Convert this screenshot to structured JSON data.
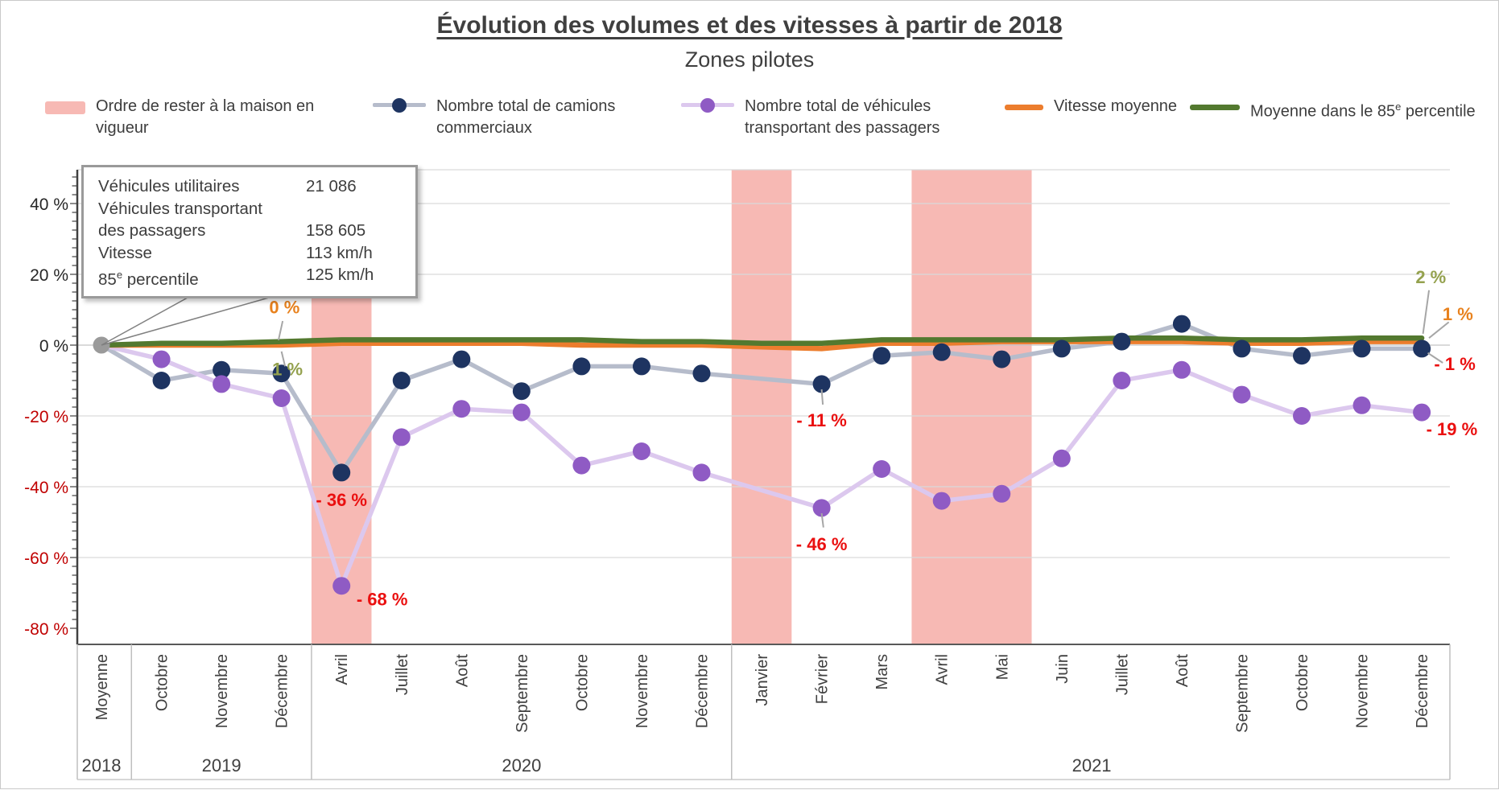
{
  "title": "Évolution des volumes et des vitesses à partir de 2018",
  "subtitle": "Zones pilotes",
  "legend": {
    "items": [
      {
        "line1": "Ordre de rester à la maison en",
        "line2": "vigueur"
      },
      {
        "line1": "Nombre total de camions",
        "line2": "commerciaux"
      },
      {
        "line1": "Nombre total de véhicules",
        "line2": "transportant des passagers"
      },
      {
        "line1": "Vitesse moyenne",
        "line2": ""
      },
      {
        "pre": "Moyenne dans le 85",
        "sup": "e",
        "post": " percentile"
      }
    ]
  },
  "tooltip": {
    "rows": [
      {
        "label": "Véhicules utilitaires",
        "value": "21 086"
      },
      {
        "label": "Véhicules transportant",
        "value": ""
      },
      {
        "label": "des passagers",
        "value": "158 605"
      },
      {
        "label": "Vitesse",
        "value": "113 km/h"
      }
    ],
    "row_85": {
      "pre": "85",
      "sup": "e",
      "post": " percentile",
      "value": "125 km/h"
    }
  },
  "colors": {
    "band": "#f7b9b4",
    "navy": "#1e3461",
    "navy_line": "#b6bccb",
    "purple": "#8f5bc4",
    "purple_line": "#dcc8ee",
    "orange": "#ec7d2d",
    "green": "#53792f",
    "red": "#ea1010",
    "olive": "#94a14e",
    "orange_label": "#e8821e",
    "grid": "#d9d9d9",
    "axis": "#404040",
    "neg_tick": "#c00000",
    "baseline": "#9a9a9a",
    "text": "#404040"
  },
  "chart_data": {
    "type": "line",
    "title": "Évolution des volumes et des vitesses à partir de 2018",
    "subtitle": "Zones pilotes",
    "xlabel": "",
    "ylabel": "",
    "ylim": [
      -80,
      50
    ],
    "yticks": [
      40,
      20,
      0,
      -20,
      -40,
      -60,
      -80
    ],
    "grid": true,
    "legend_position": "top",
    "categories": [
      "Moyenne",
      "Octobre",
      "Novembre",
      "Décembre",
      "Avril",
      "Juillet",
      "Août",
      "Septembre",
      "Octobre",
      "Novembre",
      "Décembre",
      "Janvier",
      "Février",
      "Mars",
      "Avril",
      "Mai",
      "Juin",
      "Juillet",
      "Août",
      "Septembre",
      "Octobre",
      "Novembre",
      "Décembre"
    ],
    "year_groups": [
      {
        "label": "2018",
        "start": 0,
        "end": 0
      },
      {
        "label": "2019",
        "start": 1,
        "end": 3
      },
      {
        "label": "2020",
        "start": 4,
        "end": 10
      },
      {
        "label": "2021",
        "start": 11,
        "end": 22
      }
    ],
    "stay_home_bands": [
      [
        4,
        4
      ],
      [
        11,
        11
      ],
      [
        14,
        15
      ]
    ],
    "series": [
      {
        "name": "Nombre total de camions commerciaux",
        "markers": true,
        "color_key": "navy",
        "line_key": "navy_line",
        "values": [
          0,
          -10,
          -7,
          -8,
          -36,
          -10,
          -4,
          -13,
          -6,
          -6,
          -8,
          null,
          -11,
          -3,
          -2,
          -4,
          -1,
          1,
          6,
          -1,
          -3,
          -1,
          -1
        ]
      },
      {
        "name": "Nombre total de véhicules transportant des passagers",
        "markers": true,
        "color_key": "purple",
        "line_key": "purple_line",
        "values": [
          0,
          -4,
          -11,
          -15,
          -68,
          -26,
          -18,
          -19,
          -34,
          -30,
          -36,
          null,
          -46,
          -35,
          -44,
          -42,
          -32,
          -10,
          -7,
          -14,
          -20,
          -17,
          -19
        ]
      },
      {
        "name": "Vitesse moyenne",
        "markers": false,
        "color_key": "orange",
        "values": [
          0,
          0,
          0,
          0,
          0.5,
          0.5,
          0.5,
          0.5,
          0,
          0,
          0,
          -0.5,
          -1,
          0.5,
          0.5,
          1,
          1,
          1,
          1,
          0.5,
          0.5,
          1,
          1
        ]
      },
      {
        "name": "Moyenne dans le 85e percentile",
        "markers": false,
        "color_key": "green",
        "values": [
          0,
          0.5,
          0.5,
          1,
          1.5,
          1.5,
          1.5,
          1.5,
          1.5,
          1,
          1,
          0.5,
          0.5,
          1.5,
          1.5,
          1.5,
          1.5,
          2,
          2,
          1.5,
          1.5,
          2,
          2
        ]
      }
    ],
    "annotations": [
      {
        "text": "0 %",
        "color_key": "orange_label",
        "xi": 3.05,
        "yv": 9,
        "anchor": "middle"
      },
      {
        "text": "1 %",
        "color_key": "olive",
        "xi": 3.1,
        "yv": -8.5,
        "anchor": "middle"
      },
      {
        "text": "- 36 %",
        "color_key": "red",
        "xi": 4.0,
        "yv": -45.5,
        "anchor": "middle"
      },
      {
        "text": "- 68 %",
        "color_key": "red",
        "xi": 4.25,
        "yv": -73.5,
        "anchor": "start"
      },
      {
        "text": "- 11 %",
        "color_key": "red",
        "xi": 12.0,
        "yv": -23,
        "anchor": "middle"
      },
      {
        "text": "- 46 %",
        "color_key": "red",
        "xi": 12.0,
        "yv": -58,
        "anchor": "middle"
      },
      {
        "text": "2 %",
        "color_key": "olive",
        "xi": 22.15,
        "yv": 17.5,
        "anchor": "middle"
      },
      {
        "text": "1 %",
        "color_key": "orange_label",
        "xi": 22.6,
        "yv": 7,
        "anchor": "middle"
      },
      {
        "text": "- 1 %",
        "color_key": "red",
        "xi": 22.55,
        "yv": -7,
        "anchor": "middle"
      },
      {
        "text": "- 19 %",
        "color_key": "red",
        "xi": 22.5,
        "yv": -25.5,
        "anchor": "middle"
      }
    ],
    "leaders": [
      [
        [
          3.02,
          6.8
        ],
        [
          2.95,
          1.4
        ]
      ],
      [
        [
          3.06,
          -6.0
        ],
        [
          3.0,
          -1.8
        ]
      ],
      [
        [
          22.12,
          15.5
        ],
        [
          22.02,
          3.2
        ]
      ],
      [
        [
          22.45,
          6.5
        ],
        [
          22.12,
          2.0
        ]
      ],
      [
        [
          22.35,
          -5.0
        ],
        [
          22.1,
          -2.2
        ]
      ],
      [
        [
          12.0,
          -12.5
        ],
        [
          12.02,
          -16.8
        ]
      ],
      [
        [
          12.0,
          -47.5
        ],
        [
          12.03,
          -51.5
        ]
      ]
    ]
  }
}
